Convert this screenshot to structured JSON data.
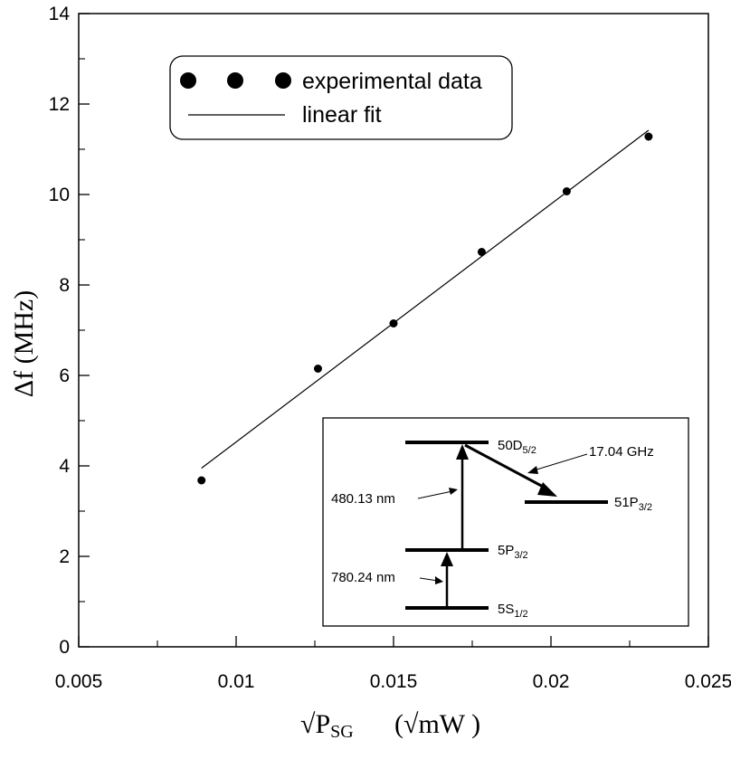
{
  "chart_data": {
    "type": "scatter",
    "title": "",
    "xlabel": {
      "base": "√P",
      "sub": "SG",
      "unit": "(√mW )"
    },
    "ylabel": "Δf  (MHz)",
    "xlim": [
      0.005,
      0.025
    ],
    "ylim": [
      0,
      14
    ],
    "xticks": [
      0.005,
      0.01,
      0.015,
      0.02,
      0.025
    ],
    "xtick_labels": [
      "0.005",
      "0.01",
      "0.015",
      "0.02",
      "0.025"
    ],
    "yticks": [
      0,
      2,
      4,
      6,
      8,
      10,
      12,
      14
    ],
    "ytick_labels": [
      "0",
      "2",
      "4",
      "6",
      "8",
      "10",
      "12",
      "14"
    ],
    "series": [
      {
        "name": "experimental data",
        "kind": "scatter",
        "x": [
          0.0089,
          0.0126,
          0.015,
          0.0178,
          0.0205,
          0.0231
        ],
        "y": [
          3.68,
          6.15,
          7.15,
          8.73,
          10.07,
          11.28
        ]
      },
      {
        "name": "linear fit",
        "kind": "line",
        "x": [
          0.0089,
          0.0231
        ],
        "y": [
          3.95,
          11.42
        ]
      }
    ],
    "legend": {
      "position": "top-left",
      "entries": [
        "experimental data",
        "linear fit"
      ]
    },
    "inset": {
      "description_labels": {
        "level_50d": {
          "base": "50D",
          "sub": "5/2"
        },
        "level_51p": {
          "base": "51P",
          "sub": "3/2"
        },
        "level_5p": {
          "base": "5P",
          "sub": "3/2"
        },
        "level_5s": {
          "base": "5S",
          "sub": "1/2"
        },
        "wavelength_upper": "480.13 nm",
        "wavelength_lower": "780.24 nm",
        "microwave": "17.04 GHz"
      }
    }
  }
}
